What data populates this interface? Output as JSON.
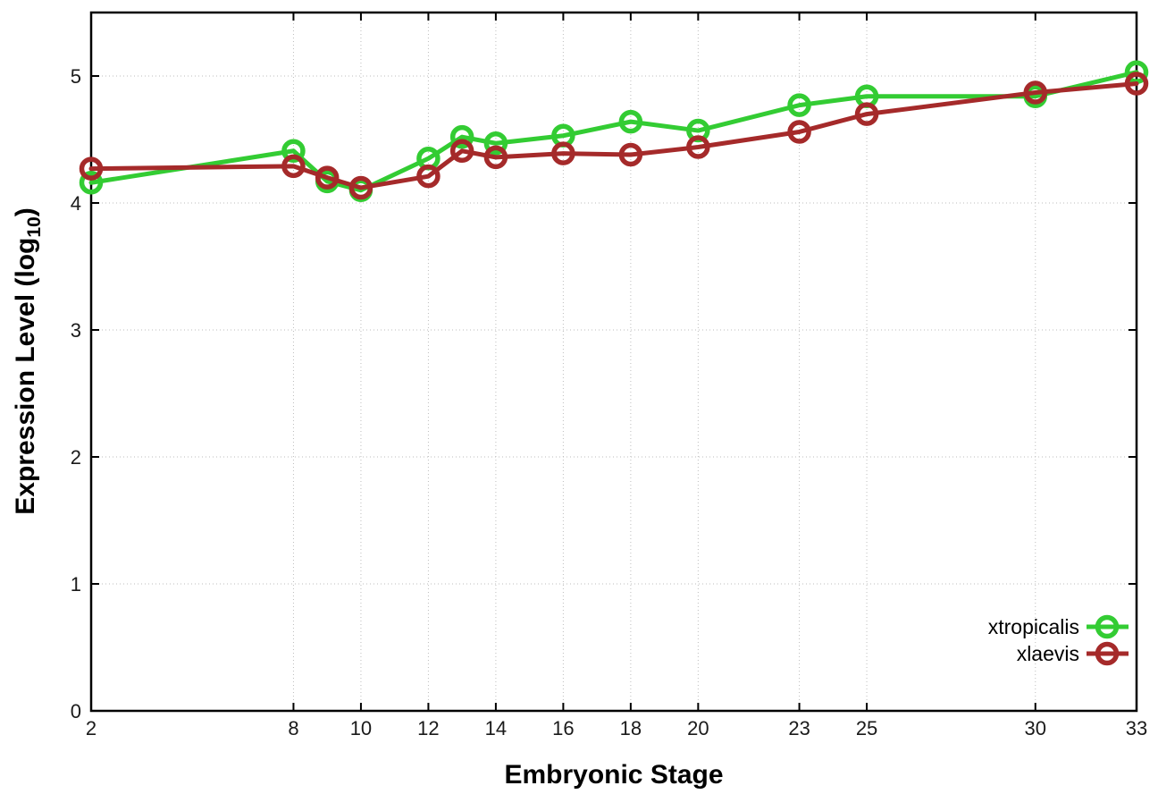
{
  "figure": {
    "background_color": "#ffffff",
    "border_color": "#000000",
    "grid_color": "#bdbdbd",
    "text_color": "#000000"
  },
  "axes": {
    "x_title": "Embryonic Stage",
    "y_title_main": "Expression Level (log",
    "y_title_sub": "10",
    "y_title_close": ")"
  },
  "legend": {
    "entries": [
      {
        "label": "xtropicalis",
        "color": "#33cc33"
      },
      {
        "label": "xlaevis",
        "color": "#a52a2a"
      }
    ]
  },
  "chart_data": {
    "type": "line",
    "title": "",
    "xlabel": "Embryonic Stage",
    "ylabel": "Expression Level (log10)",
    "x": [
      2,
      8,
      9,
      10,
      12,
      13,
      14,
      16,
      18,
      20,
      23,
      25,
      30,
      33
    ],
    "series": [
      {
        "name": "xtropicalis",
        "color": "#33cc33",
        "values": [
          4.16,
          4.41,
          4.17,
          4.1,
          4.35,
          4.52,
          4.47,
          4.53,
          4.64,
          4.57,
          4.77,
          4.84,
          4.84,
          5.03
        ]
      },
      {
        "name": "xlaevis",
        "color": "#a52a2a",
        "values": [
          4.27,
          4.29,
          4.2,
          4.12,
          4.21,
          4.41,
          4.36,
          4.39,
          4.38,
          4.44,
          4.56,
          4.7,
          4.87,
          4.94
        ]
      }
    ],
    "xlim": [
      2,
      33
    ],
    "ylim": [
      0,
      5.5
    ],
    "x_ticks": [
      2,
      8,
      10,
      12,
      14,
      16,
      18,
      20,
      23,
      25,
      30,
      33
    ],
    "y_ticks": [
      0,
      1,
      2,
      3,
      4,
      5
    ],
    "grid": true,
    "legend_position": "inside-lower-right",
    "marker": "open-circle",
    "line_width": 5,
    "marker_radius": 10.5,
    "marker_stroke_width": 5.5
  }
}
